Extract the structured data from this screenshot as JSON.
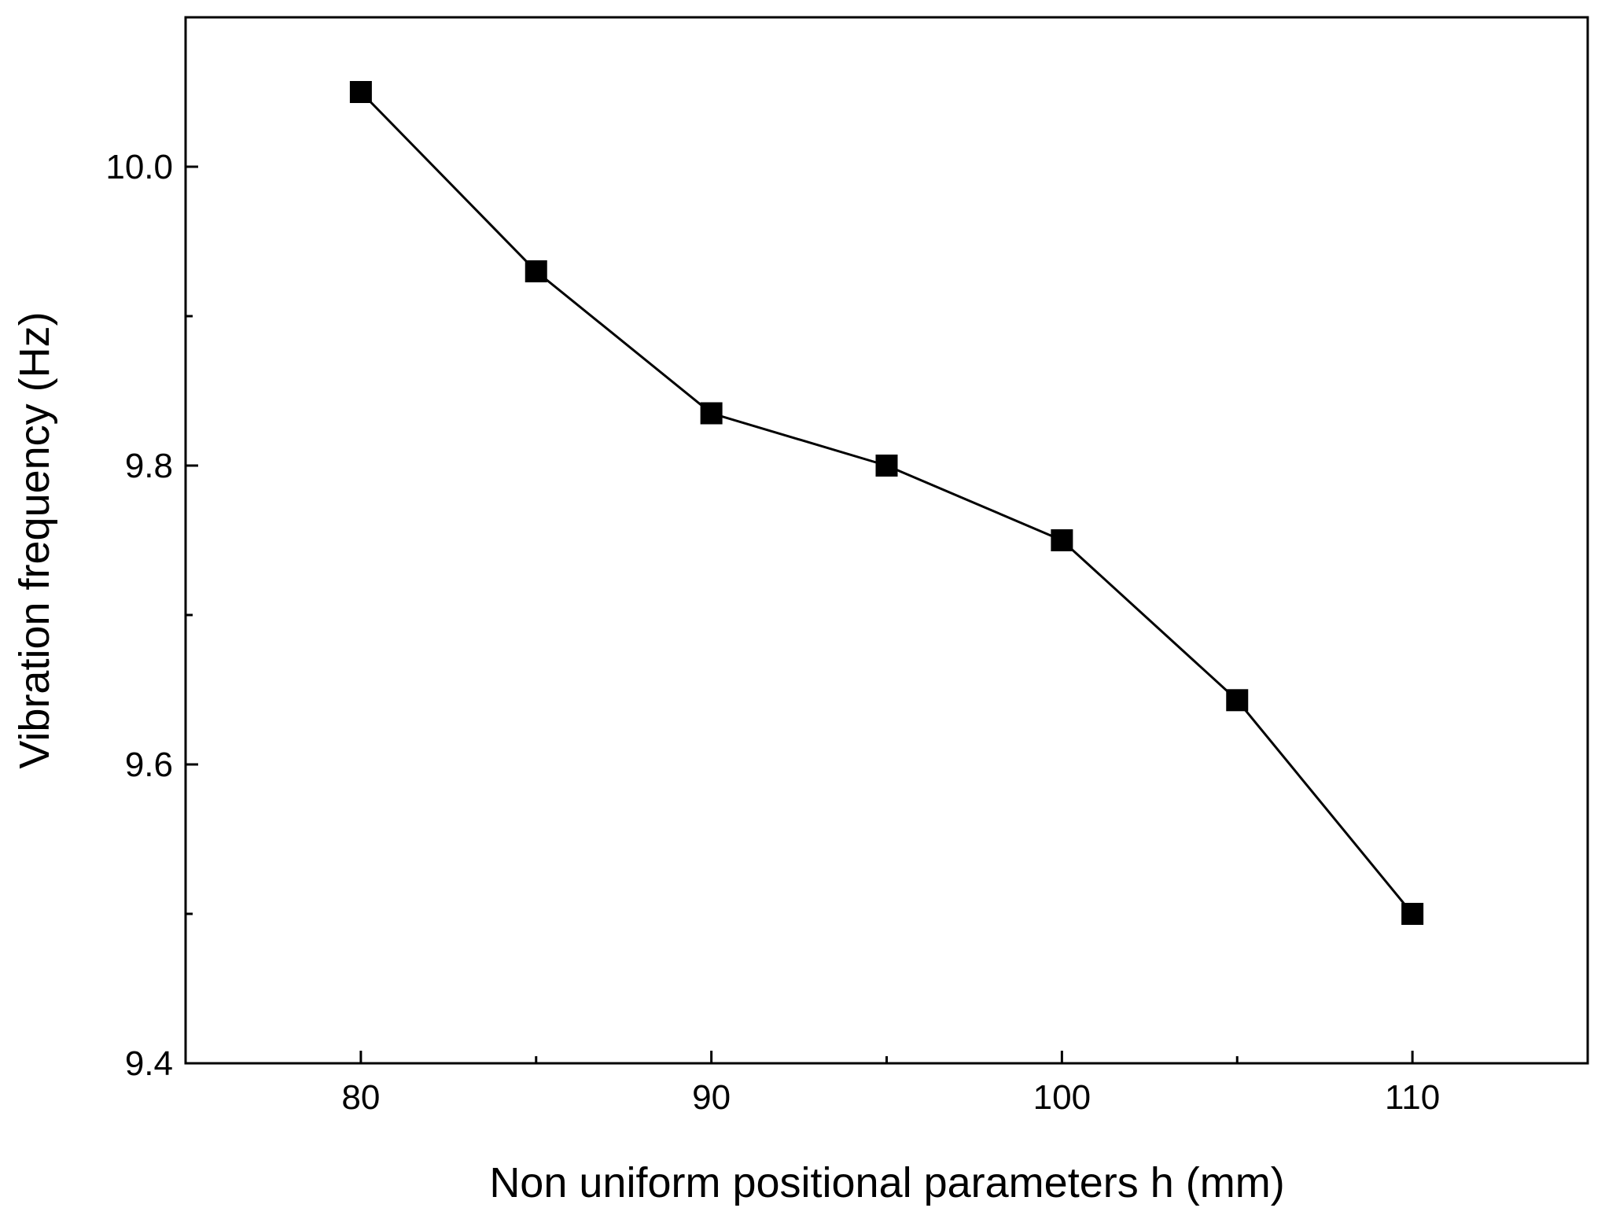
{
  "chart_data": {
    "type": "line",
    "title": "",
    "xlabel": "Non uniform positional parameters h (mm)",
    "ylabel": "Vibration frequency (Hz)",
    "xlim": [
      75,
      115
    ],
    "ylim": [
      9.4,
      10.1
    ],
    "x_ticks": [
      80,
      90,
      100,
      110
    ],
    "x_tick_labels": [
      "80",
      "90",
      "100",
      "110"
    ],
    "x_minor_ticks": [
      85,
      95,
      105
    ],
    "y_ticks": [
      9.4,
      9.6,
      9.8,
      10.0
    ],
    "y_tick_labels": [
      "9.4",
      "9.6",
      "9.8",
      "10.0"
    ],
    "y_minor_ticks": [
      9.5,
      9.7,
      9.9
    ],
    "grid": false,
    "legend": "none",
    "series": [
      {
        "x": [
          80,
          85,
          90,
          95,
          100,
          105,
          110
        ],
        "values": [
          10.05,
          9.93,
          9.835,
          9.8,
          9.75,
          9.643,
          9.5
        ],
        "marker": "square",
        "color": "#000000"
      }
    ]
  }
}
